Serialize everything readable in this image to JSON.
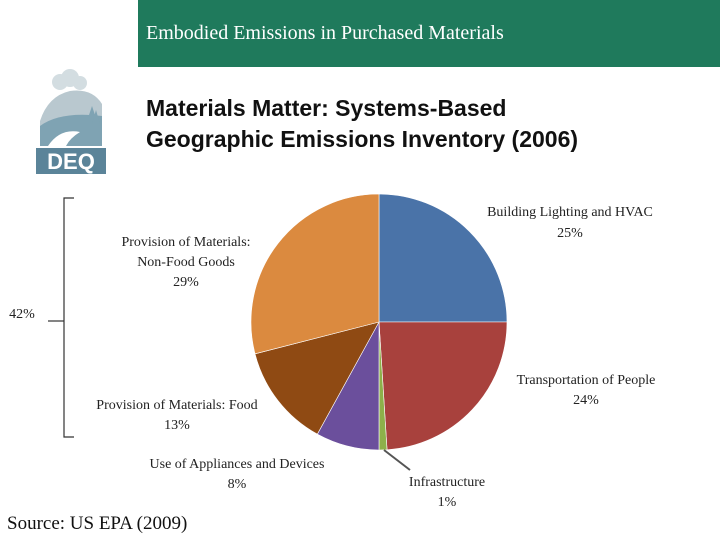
{
  "banner": {
    "title": "Embodied Emissions in Purchased Materials"
  },
  "logo": {
    "text": "DEQ"
  },
  "heading": {
    "line1": "Materials Matter: Systems-Based",
    "line2": "Geographic Emissions Inventory (2006)"
  },
  "chart_data": {
    "type": "pie",
    "title": "",
    "slices": [
      {
        "label": "Building Lighting and HVAC",
        "value": 25,
        "value_label": "25%",
        "color": "#4a73a8"
      },
      {
        "label": "Transportation of People",
        "value": 24,
        "value_label": "24%",
        "color": "#a8413d"
      },
      {
        "label": "Infrastructure",
        "value": 1,
        "value_label": "1%",
        "color": "#8db04a"
      },
      {
        "label": "Use of Appliances and Devices",
        "value": 8,
        "value_label": "8%",
        "color": "#6b4f9c"
      },
      {
        "label": "Provision of Materials: Food",
        "value": 13,
        "value_label": "13%",
        "color": "#8f4a13"
      },
      {
        "label": "Provision of Materials: Non-Food Goods",
        "value": 29,
        "value_label": "29%",
        "color": "#db8a3f"
      }
    ],
    "bracket": {
      "label": "42%",
      "covers": [
        "Provision of Materials: Non-Food Goods",
        "Provision of Materials: Food"
      ]
    }
  },
  "source": "Source: US EPA (2009)"
}
